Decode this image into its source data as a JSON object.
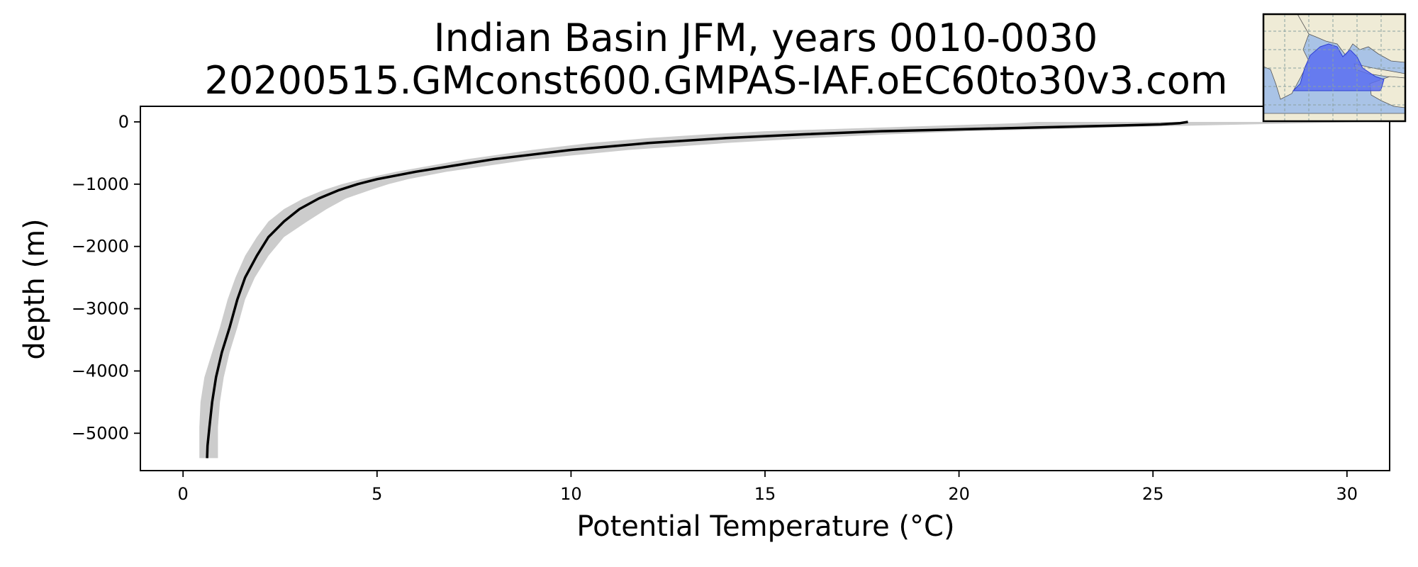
{
  "chart_data": {
    "type": "line",
    "title": "Indian Basin JFM, years 0010-0030",
    "subtitle": "20200515.GMconst600.GMPAS-IAF.oEC60to30v3.com",
    "xlabel": "Potential Temperature (°C)",
    "ylabel": "depth (m)",
    "xlim": [
      -1.1,
      31.1
    ],
    "ylim": [
      -5600,
      250
    ],
    "xticks": [
      0,
      5,
      10,
      15,
      20,
      25,
      30
    ],
    "yticks": [
      0,
      -1000,
      -2000,
      -3000,
      -4000,
      -5000
    ],
    "xtick_labels": [
      "0",
      "5",
      "10",
      "15",
      "20",
      "25",
      "30"
    ],
    "ytick_labels": [
      "0",
      "−1000",
      "−2000",
      "−3000",
      "−4000",
      "−5000"
    ],
    "grid": false,
    "legend": "none",
    "series": [
      {
        "role": "mean-profile",
        "color": "#000000",
        "x": [
          25.9,
          25.7,
          25.2,
          24.0,
          22.0,
          20.0,
          18.0,
          16.0,
          14.0,
          12.0,
          10.0,
          8.0,
          7.0,
          6.0,
          5.0,
          4.5,
          4.0,
          3.5,
          3.0,
          2.6,
          2.2,
          1.9,
          1.6,
          1.4,
          1.2,
          1.0,
          0.85,
          0.75,
          0.68,
          0.63,
          0.62
        ],
        "y": [
          0,
          -20,
          -40,
          -60,
          -90,
          -120,
          -150,
          -200,
          -260,
          -340,
          -450,
          -600,
          -700,
          -800,
          -920,
          -1000,
          -1100,
          -1230,
          -1400,
          -1600,
          -1850,
          -2150,
          -2500,
          -2850,
          -3300,
          -3700,
          -4100,
          -4500,
          -4900,
          -5200,
          -5400
        ]
      }
    ],
    "band": {
      "role": "spread",
      "color": "#cccccc",
      "y": [
        0,
        -20,
        -40,
        -60,
        -90,
        -120,
        -150,
        -200,
        -260,
        -340,
        -450,
        -600,
        -700,
        -800,
        -920,
        -1000,
        -1100,
        -1230,
        -1400,
        -1600,
        -1850,
        -2150,
        -2500,
        -2850,
        -3300,
        -3700,
        -4100,
        -4500,
        -4900,
        -5200,
        -5400
      ],
      "x_low": [
        22.0,
        21.5,
        20.5,
        19.5,
        18.0,
        16.5,
        15.0,
        13.5,
        12.0,
        10.5,
        9.0,
        7.3,
        6.4,
        5.5,
        4.6,
        4.1,
        3.6,
        3.1,
        2.6,
        2.2,
        1.9,
        1.6,
        1.35,
        1.15,
        0.95,
        0.75,
        0.55,
        0.45,
        0.42,
        0.42,
        0.42
      ],
      "x_high": [
        30.5,
        29.0,
        27.5,
        26.0,
        24.0,
        22.2,
        20.2,
        18.2,
        16.2,
        14.0,
        11.5,
        9.0,
        7.9,
        6.8,
        5.8,
        5.3,
        4.8,
        4.2,
        3.7,
        3.2,
        2.6,
        2.2,
        1.85,
        1.6,
        1.4,
        1.2,
        1.05,
        0.95,
        0.9,
        0.9,
        0.9
      ]
    }
  },
  "inset_map": {
    "land_color": "#efebd6",
    "ocean_color": "#a9c3e6",
    "region_color": "#5b6ff0",
    "grid_color": "#8aa0a0"
  }
}
